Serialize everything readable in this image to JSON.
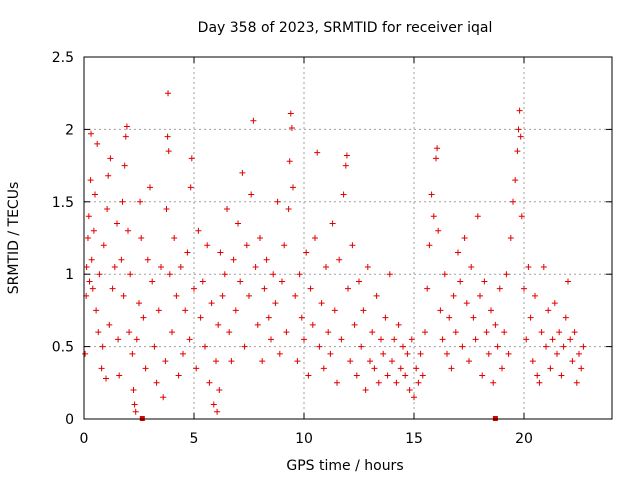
{
  "chart_data": {
    "type": "scatter",
    "title": "Day 358 of 2023, SRMTID for receiver iqal",
    "xlabel": "GPS time / hours",
    "ylabel": "SRMTID / TECUs",
    "xlim": [
      0,
      24
    ],
    "ylim": [
      0,
      2.5
    ],
    "xticks": [
      0,
      5,
      10,
      15,
      20
    ],
    "xtick_labels": [
      "0",
      "5",
      "10",
      "15",
      "20"
    ],
    "yticks": [
      0,
      0.5,
      1,
      1.5,
      2,
      2.5
    ],
    "ytick_labels": [
      "0",
      "0.5",
      "1",
      "1.5",
      "2",
      "2.5"
    ],
    "grid": true,
    "marker": "+",
    "color": "#e00000",
    "series": [
      {
        "name": "SRMTID",
        "points": [
          [
            0.05,
            0.45
          ],
          [
            0.1,
            0.85
          ],
          [
            0.12,
            1.05
          ],
          [
            0.18,
            1.25
          ],
          [
            0.22,
            1.4
          ],
          [
            0.25,
            0.95
          ],
          [
            0.3,
            1.65
          ],
          [
            0.32,
            1.97
          ],
          [
            0.35,
            1.1
          ],
          [
            0.4,
            0.9
          ],
          [
            0.45,
            1.3
          ],
          [
            0.5,
            1.55
          ],
          [
            0.55,
            0.75
          ],
          [
            0.6,
            1.9
          ],
          [
            0.65,
            0.6
          ],
          [
            0.7,
            1.0
          ],
          [
            0.8,
            0.35
          ],
          [
            0.85,
            0.5
          ],
          [
            0.9,
            1.2
          ],
          [
            1.0,
            0.28
          ],
          [
            1.05,
            1.45
          ],
          [
            1.1,
            1.68
          ],
          [
            1.15,
            0.65
          ],
          [
            1.2,
            1.8
          ],
          [
            1.3,
            0.9
          ],
          [
            1.4,
            1.05
          ],
          [
            1.5,
            1.35
          ],
          [
            1.55,
            0.55
          ],
          [
            1.6,
            0.3
          ],
          [
            1.7,
            1.1
          ],
          [
            1.75,
            1.5
          ],
          [
            1.8,
            0.85
          ],
          [
            1.85,
            1.75
          ],
          [
            1.9,
            1.95
          ],
          [
            1.95,
            2.02
          ],
          [
            2.0,
            1.3
          ],
          [
            2.05,
            0.6
          ],
          [
            2.1,
            1.0
          ],
          [
            2.2,
            0.45
          ],
          [
            2.25,
            0.2
          ],
          [
            2.3,
            0.1
          ],
          [
            2.35,
            0.05
          ],
          [
            2.4,
            0.55
          ],
          [
            2.5,
            0.8
          ],
          [
            2.55,
            1.5
          ],
          [
            2.6,
            1.25
          ],
          [
            2.7,
            0.7
          ],
          [
            2.8,
            0.35
          ],
          [
            2.9,
            1.1
          ],
          [
            3.0,
            1.6
          ],
          [
            3.1,
            0.95
          ],
          [
            3.2,
            0.5
          ],
          [
            3.3,
            0.25
          ],
          [
            3.4,
            0.75
          ],
          [
            3.5,
            1.05
          ],
          [
            3.6,
            0.15
          ],
          [
            3.7,
            0.4
          ],
          [
            3.75,
            1.45
          ],
          [
            3.8,
            1.95
          ],
          [
            3.82,
            2.25
          ],
          [
            3.85,
            1.85
          ],
          [
            3.9,
            1.0
          ],
          [
            4.0,
            0.6
          ],
          [
            4.1,
            1.25
          ],
          [
            4.2,
            0.85
          ],
          [
            4.3,
            0.3
          ],
          [
            4.4,
            1.05
          ],
          [
            4.5,
            0.45
          ],
          [
            4.6,
            0.75
          ],
          [
            4.7,
            1.15
          ],
          [
            4.8,
            0.55
          ],
          [
            4.85,
            1.6
          ],
          [
            4.9,
            1.8
          ],
          [
            5.0,
            0.9
          ],
          [
            5.1,
            0.35
          ],
          [
            5.2,
            1.3
          ],
          [
            5.3,
            0.7
          ],
          [
            5.4,
            0.95
          ],
          [
            5.5,
            0.5
          ],
          [
            5.6,
            1.2
          ],
          [
            5.7,
            0.25
          ],
          [
            5.8,
            0.8
          ],
          [
            5.9,
            0.1
          ],
          [
            6.0,
            0.4
          ],
          [
            6.05,
            0.05
          ],
          [
            6.1,
            0.65
          ],
          [
            6.15,
            0.2
          ],
          [
            6.2,
            1.15
          ],
          [
            6.3,
            0.85
          ],
          [
            6.4,
            1.0
          ],
          [
            6.5,
            1.45
          ],
          [
            6.6,
            0.6
          ],
          [
            6.7,
            0.4
          ],
          [
            6.8,
            1.1
          ],
          [
            6.9,
            0.75
          ],
          [
            7.0,
            1.35
          ],
          [
            7.1,
            0.95
          ],
          [
            7.2,
            1.7
          ],
          [
            7.3,
            0.5
          ],
          [
            7.4,
            1.2
          ],
          [
            7.5,
            0.85
          ],
          [
            7.6,
            1.55
          ],
          [
            7.7,
            2.06
          ],
          [
            7.8,
            1.05
          ],
          [
            7.9,
            0.65
          ],
          [
            8.0,
            1.25
          ],
          [
            8.1,
            0.4
          ],
          [
            8.2,
            0.9
          ],
          [
            8.3,
            1.1
          ],
          [
            8.4,
            0.7
          ],
          [
            8.5,
            0.55
          ],
          [
            8.6,
            1.0
          ],
          [
            8.7,
            0.8
          ],
          [
            8.8,
            1.5
          ],
          [
            8.9,
            0.45
          ],
          [
            9.0,
            0.95
          ],
          [
            9.1,
            1.2
          ],
          [
            9.2,
            0.6
          ],
          [
            9.3,
            1.45
          ],
          [
            9.35,
            1.78
          ],
          [
            9.4,
            2.11
          ],
          [
            9.45,
            2.01
          ],
          [
            9.5,
            1.6
          ],
          [
            9.6,
            0.85
          ],
          [
            9.7,
            0.4
          ],
          [
            9.8,
            1.0
          ],
          [
            9.9,
            0.7
          ],
          [
            10.0,
            0.55
          ],
          [
            10.1,
            1.15
          ],
          [
            10.2,
            0.3
          ],
          [
            10.3,
            0.9
          ],
          [
            10.4,
            0.65
          ],
          [
            10.5,
            1.25
          ],
          [
            10.6,
            1.84
          ],
          [
            10.7,
            0.5
          ],
          [
            10.8,
            0.8
          ],
          [
            10.9,
            0.35
          ],
          [
            11.0,
            1.05
          ],
          [
            11.1,
            0.6
          ],
          [
            11.2,
            0.45
          ],
          [
            11.3,
            1.35
          ],
          [
            11.4,
            0.75
          ],
          [
            11.5,
            0.25
          ],
          [
            11.6,
            1.1
          ],
          [
            11.7,
            0.55
          ],
          [
            11.8,
            1.55
          ],
          [
            11.9,
            1.75
          ],
          [
            11.95,
            1.82
          ],
          [
            12.0,
            0.9
          ],
          [
            12.1,
            0.4
          ],
          [
            12.2,
            1.2
          ],
          [
            12.3,
            0.65
          ],
          [
            12.4,
            0.3
          ],
          [
            12.5,
            0.95
          ],
          [
            12.6,
            0.5
          ],
          [
            12.7,
            0.75
          ],
          [
            12.8,
            0.2
          ],
          [
            12.9,
            1.05
          ],
          [
            13.0,
            0.4
          ],
          [
            13.1,
            0.6
          ],
          [
            13.2,
            0.35
          ],
          [
            13.3,
            0.85
          ],
          [
            13.4,
            0.25
          ],
          [
            13.5,
            0.55
          ],
          [
            13.6,
            0.45
          ],
          [
            13.7,
            0.7
          ],
          [
            13.8,
            0.3
          ],
          [
            13.9,
            1.0
          ],
          [
            14.0,
            0.4
          ],
          [
            14.1,
            0.55
          ],
          [
            14.2,
            0.25
          ],
          [
            14.3,
            0.65
          ],
          [
            14.4,
            0.35
          ],
          [
            14.5,
            0.5
          ],
          [
            14.6,
            0.3
          ],
          [
            14.7,
            0.45
          ],
          [
            14.8,
            0.2
          ],
          [
            14.9,
            0.55
          ],
          [
            15.0,
            0.15
          ],
          [
            15.1,
            0.35
          ],
          [
            15.2,
            0.25
          ],
          [
            15.3,
            0.45
          ],
          [
            15.4,
            0.3
          ],
          [
            15.5,
            0.6
          ],
          [
            15.6,
            0.9
          ],
          [
            15.7,
            1.2
          ],
          [
            15.8,
            1.55
          ],
          [
            15.9,
            1.4
          ],
          [
            16.0,
            1.8
          ],
          [
            16.05,
            1.87
          ],
          [
            16.1,
            1.3
          ],
          [
            16.2,
            0.75
          ],
          [
            16.3,
            0.55
          ],
          [
            16.4,
            1.0
          ],
          [
            16.5,
            0.45
          ],
          [
            16.6,
            0.7
          ],
          [
            16.7,
            0.35
          ],
          [
            16.8,
            0.85
          ],
          [
            16.9,
            0.6
          ],
          [
            17.0,
            1.15
          ],
          [
            17.1,
            0.95
          ],
          [
            17.2,
            0.5
          ],
          [
            17.3,
            1.25
          ],
          [
            17.4,
            0.8
          ],
          [
            17.5,
            0.4
          ],
          [
            17.6,
            1.05
          ],
          [
            17.7,
            0.7
          ],
          [
            17.8,
            0.55
          ],
          [
            17.9,
            1.4
          ],
          [
            18.0,
            0.85
          ],
          [
            18.1,
            0.3
          ],
          [
            18.2,
            0.95
          ],
          [
            18.3,
            0.6
          ],
          [
            18.4,
            0.45
          ],
          [
            18.5,
            0.75
          ],
          [
            18.6,
            0.25
          ],
          [
            18.7,
            0.65
          ],
          [
            18.8,
            0.5
          ],
          [
            18.9,
            0.9
          ],
          [
            19.0,
            0.35
          ],
          [
            19.1,
            0.6
          ],
          [
            19.2,
            1.0
          ],
          [
            19.3,
            0.45
          ],
          [
            19.4,
            1.25
          ],
          [
            19.5,
            1.5
          ],
          [
            19.6,
            1.65
          ],
          [
            19.7,
            1.85
          ],
          [
            19.75,
            2.0
          ],
          [
            19.8,
            2.13
          ],
          [
            19.85,
            1.95
          ],
          [
            19.9,
            1.4
          ],
          [
            20.0,
            0.9
          ],
          [
            20.1,
            0.55
          ],
          [
            20.2,
            1.05
          ],
          [
            20.3,
            0.7
          ],
          [
            20.4,
            0.4
          ],
          [
            20.5,
            0.85
          ],
          [
            20.6,
            0.3
          ],
          [
            20.7,
            0.25
          ],
          [
            20.8,
            0.6
          ],
          [
            20.9,
            1.05
          ],
          [
            21.0,
            0.5
          ],
          [
            21.1,
            0.75
          ],
          [
            21.2,
            0.35
          ],
          [
            21.3,
            0.55
          ],
          [
            21.4,
            0.8
          ],
          [
            21.5,
            0.45
          ],
          [
            21.6,
            0.6
          ],
          [
            21.7,
            0.3
          ],
          [
            21.8,
            0.5
          ],
          [
            21.9,
            0.7
          ],
          [
            22.0,
            0.95
          ],
          [
            22.1,
            0.55
          ],
          [
            22.2,
            0.4
          ],
          [
            22.3,
            0.6
          ],
          [
            22.4,
            0.25
          ],
          [
            22.5,
            0.45
          ],
          [
            22.6,
            0.35
          ],
          [
            22.7,
            0.5
          ]
        ]
      }
    ],
    "baseline_markers": [
      2.65,
      18.7
    ]
  }
}
